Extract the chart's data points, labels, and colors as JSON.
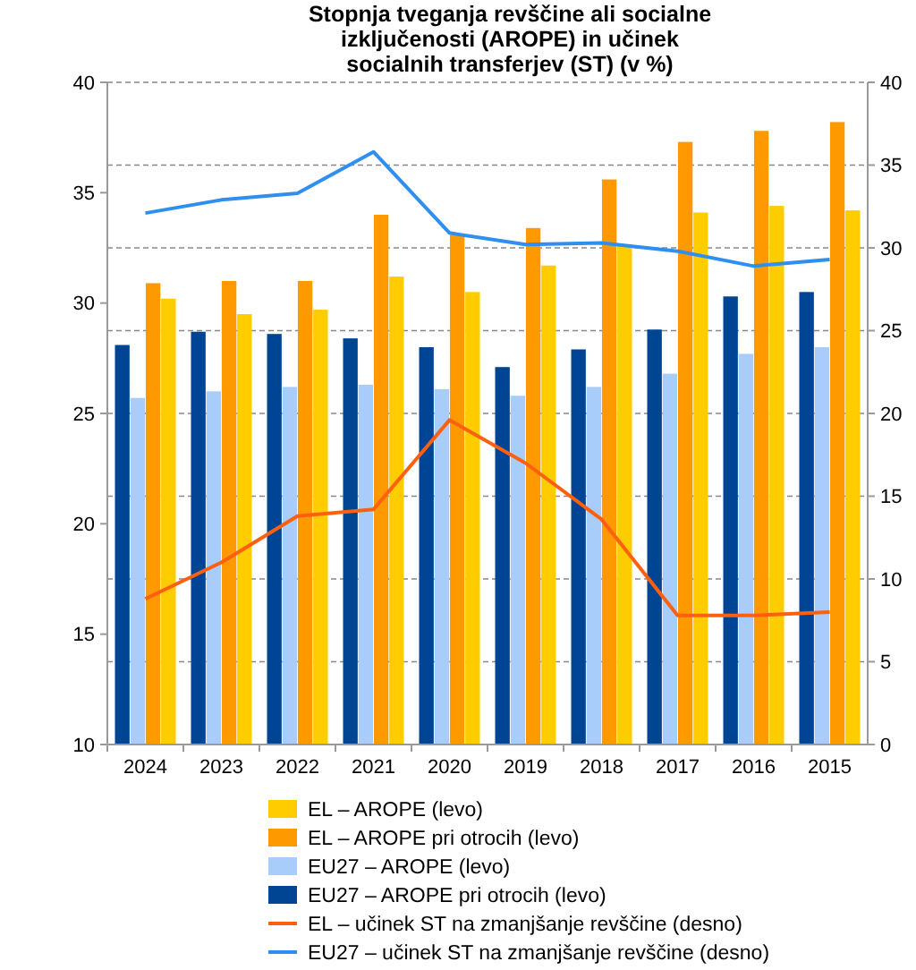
{
  "chart_data": {
    "type": "bar",
    "title": "Stopnja tveganja revščine ali socialne izključenosti (AROPE) in učinek socialnih transferjev (ST) (v %)",
    "categories": [
      "2024",
      "2023",
      "2022",
      "2021",
      "2020",
      "2019",
      "2018",
      "2017",
      "2016",
      "2015"
    ],
    "series": [
      {
        "name": "EU27 – AROPE pri otrocih (levo)",
        "color": "#004494",
        "values": [
          28.1,
          28.7,
          28.6,
          28.4,
          28.0,
          27.1,
          27.9,
          28.8,
          30.3,
          30.5
        ]
      },
      {
        "name": "EU27 – AROPE (levo)",
        "color": "#a9cdfb",
        "values": [
          25.7,
          26.0,
          26.2,
          26.3,
          26.1,
          25.8,
          26.2,
          26.8,
          27.7,
          28.0
        ]
      },
      {
        "name": "EL – AROPE pri otrocih (levo)",
        "color": "#ff9900",
        "values": [
          30.9,
          31.0,
          31.0,
          34.0,
          33.1,
          33.4,
          35.6,
          37.3,
          37.8,
          38.2
        ]
      },
      {
        "name": "EL – AROPE (levo)",
        "color": "#ffcc00",
        "values": [
          30.2,
          29.5,
          29.7,
          31.2,
          30.5,
          31.7,
          32.6,
          34.1,
          34.4,
          34.2
        ]
      },
      {
        "name": "EL – učinek ST na zmanjšanje revščine (desno)",
        "type": "line",
        "axis": "y2",
        "color": "#ff6010",
        "values": [
          8.8,
          11.0,
          13.8,
          14.2,
          19.6,
          17.0,
          13.6,
          7.8,
          7.8,
          8.0
        ]
      },
      {
        "name": "EU27 – učinek ST na zmanjšanje revščine (desno)",
        "type": "line",
        "axis": "y2",
        "color": "#2f8ff0",
        "values": [
          32.1,
          32.9,
          33.3,
          35.8,
          30.9,
          30.2,
          30.3,
          29.8,
          28.9,
          29.3
        ]
      }
    ],
    "ylim": [
      10,
      40
    ],
    "yticks": [
      10,
      15,
      20,
      25,
      30,
      35,
      40
    ],
    "y2lim": [
      0,
      40
    ],
    "y2ticks": [
      0,
      5,
      10,
      15,
      20,
      25,
      30,
      35,
      40
    ],
    "grid": true,
    "legend": "bottom",
    "marker": "none"
  }
}
